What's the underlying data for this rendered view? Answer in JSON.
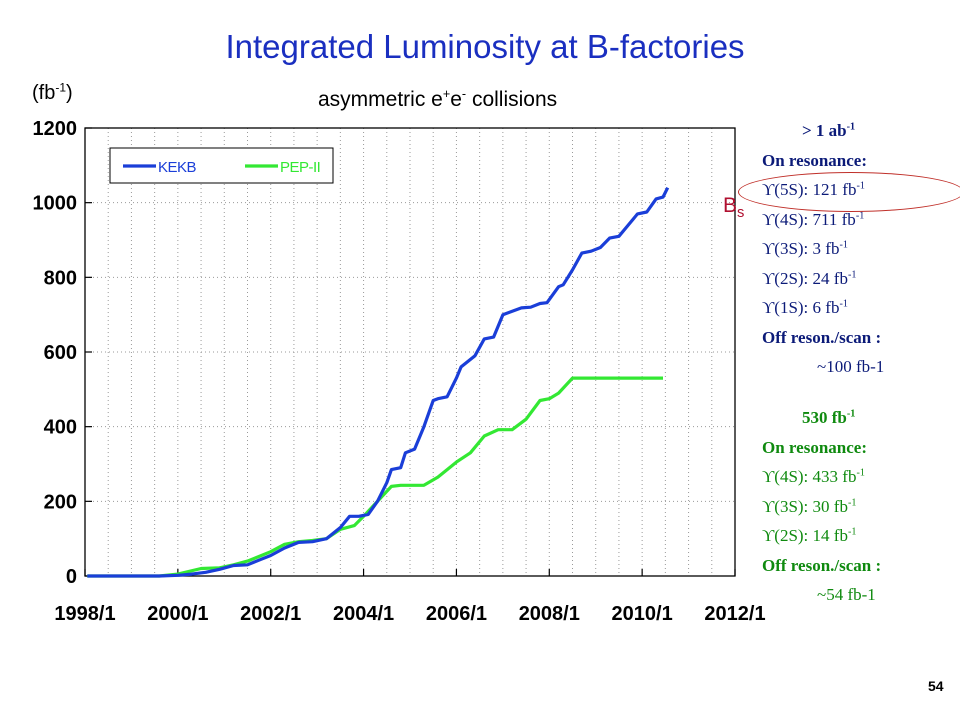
{
  "title": "Integrated Luminosity at B-factories",
  "subtitle": {
    "pre": "asymmetric e",
    "sup1": "+",
    "mid": "e",
    "sup2": "-",
    "post": " collisions"
  },
  "ylabel": {
    "pre": "(fb",
    "sup": "-1",
    "post": ")"
  },
  "page_number": "54",
  "annotation": {
    "main": "B",
    "sub": "s"
  },
  "colors": {
    "kekb": "#1a3ed8",
    "pep": "#33e833",
    "title": "#1a2fc0",
    "highlight": "#c0302a"
  },
  "kekb_summary": {
    "total": {
      "text": "> 1 ab",
      "sup": "-1"
    },
    "header": "On resonance:",
    "items": [
      {
        "text": "ϒ(5S): 121 fb",
        "sup": "-1"
      },
      {
        "text": "ϒ(4S): 711 fb",
        "sup": "-1"
      },
      {
        "text": "ϒ(3S): 3 fb",
        "sup": "-1"
      },
      {
        "text": "ϒ(2S): 24 fb",
        "sup": "-1"
      },
      {
        "text": "ϒ(1S): 6 fb",
        "sup": "-1"
      }
    ],
    "off_label": "Off reson./scan :",
    "off_value": "~100 fb-1"
  },
  "pep_summary": {
    "total": {
      "text": "530 fb",
      "sup": "-1"
    },
    "header": "On resonance:",
    "items": [
      {
        "text": "ϒ(4S): 433 fb",
        "sup": "-1"
      },
      {
        "text": "ϒ(3S): 30 fb",
        "sup": "-1"
      },
      {
        "text": "ϒ(2S): 14 fb",
        "sup": "-1"
      }
    ],
    "off_label": "Off reson./scan :",
    "off_value": "~54 fb-1"
  },
  "chart_data": {
    "type": "line",
    "title": "Integrated Luminosity at B-factories",
    "xlabel": "",
    "ylabel": "(fb-1)",
    "xlim": [
      1998.0,
      2012.0
    ],
    "ylim": [
      0,
      1200
    ],
    "x_ticks": [
      1998,
      2000,
      2002,
      2004,
      2006,
      2008,
      2010,
      2012
    ],
    "x_tick_labels": [
      "1998/1",
      "2000/1",
      "2002/1",
      "2004/1",
      "2006/1",
      "2008/1",
      "2010/1",
      "2012/1"
    ],
    "y_ticks": [
      0,
      200,
      400,
      600,
      800,
      1000,
      1200
    ],
    "y_tick_labels": [
      "0",
      "200",
      "400",
      "600",
      "800",
      "1000",
      "1200"
    ],
    "x_minor_step": 0.5,
    "grid": true,
    "legend": "top-left",
    "series": [
      {
        "name": "KEKB",
        "color": "#1a3ed8",
        "x": [
          1998.05,
          1999.0,
          1999.6,
          2000.0,
          2000.3,
          2000.6,
          2000.9,
          2001.2,
          2001.5,
          2001.8,
          2002.0,
          2002.3,
          2002.6,
          2002.9,
          2003.2,
          2003.5,
          2003.7,
          2003.9,
          2004.1,
          2004.3,
          2004.5,
          2004.6,
          2004.8,
          2004.9,
          2005.1,
          2005.3,
          2005.5,
          2005.6,
          2005.8,
          2006.0,
          2006.1,
          2006.4,
          2006.6,
          2006.8,
          2007.0,
          2007.4,
          2007.6,
          2007.8,
          2007.95,
          2008.2,
          2008.3,
          2008.5,
          2008.7,
          2008.9,
          2009.1,
          2009.3,
          2009.5,
          2009.7,
          2009.9,
          2010.1,
          2010.3,
          2010.45,
          2010.55
        ],
        "y": [
          0,
          0,
          0,
          2,
          5,
          10,
          18,
          28,
          30,
          45,
          55,
          75,
          90,
          92,
          100,
          130,
          160,
          160,
          165,
          200,
          250,
          285,
          290,
          330,
          340,
          400,
          470,
          475,
          480,
          530,
          560,
          590,
          635,
          640,
          700,
          718,
          720,
          730,
          732,
          775,
          780,
          820,
          865,
          870,
          880,
          905,
          910,
          940,
          970,
          975,
          1010,
          1015,
          1040
        ]
      },
      {
        "name": "PEP-II",
        "color": "#33e833",
        "x": [
          1998.05,
          1999.0,
          1999.6,
          2000.0,
          2000.5,
          2000.9,
          2001.2,
          2001.5,
          2001.8,
          2002.0,
          2002.3,
          2002.6,
          2002.9,
          2003.2,
          2003.5,
          2003.8,
          2004.0,
          2004.3,
          2004.6,
          2004.8,
          2005.0,
          2005.3,
          2005.6,
          2005.9,
          2006.0,
          2006.3,
          2006.6,
          2006.9,
          2007.2,
          2007.5,
          2007.8,
          2008.0,
          2008.2,
          2008.5,
          2009.0,
          2009.5,
          2010.0,
          2010.45
        ],
        "y": [
          0,
          0,
          0,
          5,
          20,
          22,
          30,
          40,
          55,
          65,
          85,
          92,
          95,
          100,
          125,
          135,
          160,
          200,
          240,
          243,
          243,
          243,
          265,
          295,
          305,
          330,
          375,
          392,
          392,
          420,
          470,
          475,
          490,
          530,
          530,
          530,
          530,
          530
        ]
      }
    ]
  }
}
